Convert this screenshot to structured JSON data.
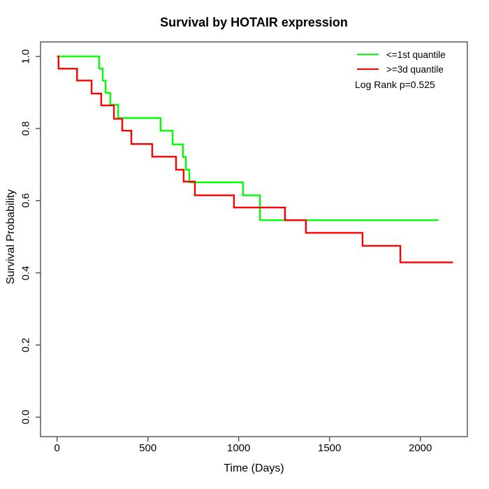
{
  "chart_data": {
    "type": "line",
    "subtype": "kaplan-meier-step",
    "title": "Survival by HOTAIR expression",
    "xlabel": "Time (Days)",
    "ylabel": "Survival Probability",
    "xlim": [
      -91,
      2266
    ],
    "ylim": [
      -0.054,
      1.039
    ],
    "grid": false,
    "legend_position": "top-right-inside",
    "axis_color": "#4f4f4f",
    "x_ticks": [
      {
        "v": 0,
        "label": "0"
      },
      {
        "v": 500,
        "label": "500"
      },
      {
        "v": 1000,
        "label": "1000"
      },
      {
        "v": 1500,
        "label": "1500"
      },
      {
        "v": 2000,
        "label": "2000"
      }
    ],
    "y_ticks": [
      {
        "v": 0.0,
        "label": "0.0"
      },
      {
        "v": 0.2,
        "label": "0.2"
      },
      {
        "v": 0.4,
        "label": "0.4"
      },
      {
        "v": 0.6,
        "label": "0.6"
      },
      {
        "v": 0.8,
        "label": "0.8"
      },
      {
        "v": 1.0,
        "label": "1.0"
      }
    ],
    "legend": [
      {
        "label": "<=1st quantile",
        "color": "#00FF00"
      },
      {
        "label": ">=3d quantile",
        "color": "#FF0000"
      }
    ],
    "annotation": "Log Rank p=0.525",
    "series": [
      {
        "name": "<=1st quantile",
        "color": "#00FF00",
        "step_points": [
          [
            0,
            1.0
          ],
          [
            232,
            0.966
          ],
          [
            251,
            0.933
          ],
          [
            267,
            0.899
          ],
          [
            293,
            0.866
          ],
          [
            336,
            0.829
          ],
          [
            570,
            0.794
          ],
          [
            636,
            0.756
          ],
          [
            693,
            0.721
          ],
          [
            709,
            0.686
          ],
          [
            728,
            0.651
          ],
          [
            1024,
            0.615
          ],
          [
            1117,
            0.546
          ],
          [
            2100,
            0.546
          ]
        ]
      },
      {
        "name": ">=3d quantile",
        "color": "#FF0000",
        "step_points": [
          [
            0,
            1.0
          ],
          [
            8,
            0.966
          ],
          [
            110,
            0.933
          ],
          [
            190,
            0.897
          ],
          [
            243,
            0.864
          ],
          [
            313,
            0.827
          ],
          [
            359,
            0.794
          ],
          [
            409,
            0.757
          ],
          [
            524,
            0.722
          ],
          [
            655,
            0.686
          ],
          [
            697,
            0.653
          ],
          [
            759,
            0.615
          ],
          [
            974,
            0.581
          ],
          [
            1255,
            0.546
          ],
          [
            1370,
            0.511
          ],
          [
            1682,
            0.475
          ],
          [
            1890,
            0.429
          ],
          [
            2180,
            0.429
          ]
        ]
      }
    ]
  }
}
